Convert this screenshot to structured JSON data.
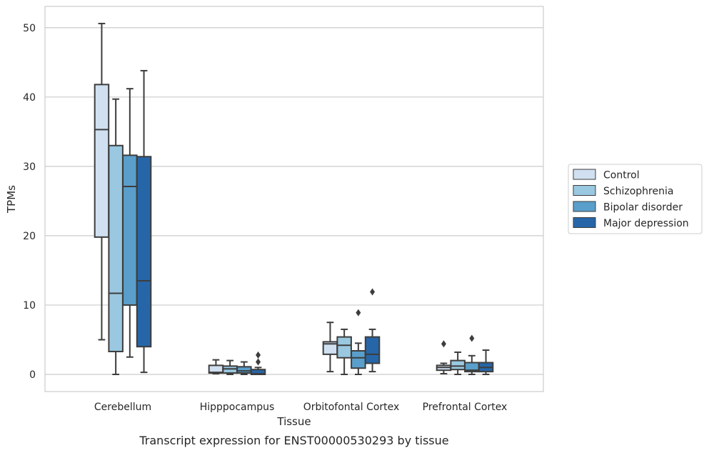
{
  "chart_data": {
    "type": "box",
    "title": "Transcript expression for ENST00000530293 by tissue",
    "xlabel": "Tissue",
    "ylabel": "TPMs",
    "ylim": [
      -2.5,
      53.0
    ],
    "yticks": [
      0,
      10,
      20,
      30,
      40,
      50
    ],
    "grid": "horizontal",
    "legend_position": "right",
    "categories": [
      "Cerebellum",
      "Hipppocampus",
      "Orbitofontal Cortex",
      "Prefrontal Cortex"
    ],
    "series": [
      {
        "name": "Control",
        "color": "#d0e0f1",
        "boxes": [
          {
            "whisker_low": 5.0,
            "q1": 19.8,
            "median": 35.3,
            "q3": 41.8,
            "whisker_high": 50.6,
            "outliers": []
          },
          {
            "whisker_low": 0.1,
            "q1": 0.2,
            "median": 0.3,
            "q3": 1.3,
            "whisker_high": 2.1,
            "outliers": []
          },
          {
            "whisker_low": 0.4,
            "q1": 2.9,
            "median": 4.4,
            "q3": 4.7,
            "whisker_high": 7.5,
            "outliers": []
          },
          {
            "whisker_low": 0.1,
            "q1": 0.6,
            "median": 1.0,
            "q3": 1.3,
            "whisker_high": 1.6,
            "outliers": [
              4.4
            ]
          }
        ]
      },
      {
        "name": "Schizophrenia",
        "color": "#9ac8e0",
        "boxes": [
          {
            "whisker_low": 0.0,
            "q1": 3.3,
            "median": 11.7,
            "q3": 33.0,
            "whisker_high": 39.7,
            "outliers": []
          },
          {
            "whisker_low": 0.0,
            "q1": 0.2,
            "median": 0.8,
            "q3": 1.2,
            "whisker_high": 2.0,
            "outliers": []
          },
          {
            "whisker_low": 0.0,
            "q1": 2.4,
            "median": 4.2,
            "q3": 5.4,
            "whisker_high": 6.5,
            "outliers": []
          },
          {
            "whisker_low": 0.0,
            "q1": 0.7,
            "median": 1.2,
            "q3": 2.0,
            "whisker_high": 3.2,
            "outliers": []
          }
        ]
      },
      {
        "name": "Bipolar disorder",
        "color": "#5a9fcb",
        "boxes": [
          {
            "whisker_low": 2.5,
            "q1": 10.0,
            "median": 27.1,
            "q3": 31.6,
            "whisker_high": 41.2,
            "outliers": []
          },
          {
            "whisker_low": 0.0,
            "q1": 0.2,
            "median": 0.5,
            "q3": 1.1,
            "whisker_high": 1.8,
            "outliers": []
          },
          {
            "whisker_low": 0.0,
            "q1": 0.9,
            "median": 2.4,
            "q3": 3.4,
            "whisker_high": 4.5,
            "outliers": [
              8.9
            ]
          },
          {
            "whisker_low": 0.0,
            "q1": 0.4,
            "median": 0.6,
            "q3": 1.7,
            "whisker_high": 2.7,
            "outliers": [
              5.2
            ]
          }
        ]
      },
      {
        "name": "Major depression",
        "color": "#2666a8",
        "boxes": [
          {
            "whisker_low": 0.3,
            "q1": 4.0,
            "median": 13.5,
            "q3": 31.4,
            "whisker_high": 43.8,
            "outliers": []
          },
          {
            "whisker_low": 0.0,
            "q1": 0.0,
            "median": 0.1,
            "q3": 0.7,
            "whisker_high": 1.0,
            "outliers": [
              1.8,
              2.8
            ]
          },
          {
            "whisker_low": 0.4,
            "q1": 1.6,
            "median": 2.9,
            "q3": 5.4,
            "whisker_high": 6.5,
            "outliers": [
              11.9
            ]
          },
          {
            "whisker_low": 0.0,
            "q1": 0.4,
            "median": 1.0,
            "q3": 1.7,
            "whisker_high": 3.5,
            "outliers": []
          }
        ]
      }
    ]
  }
}
